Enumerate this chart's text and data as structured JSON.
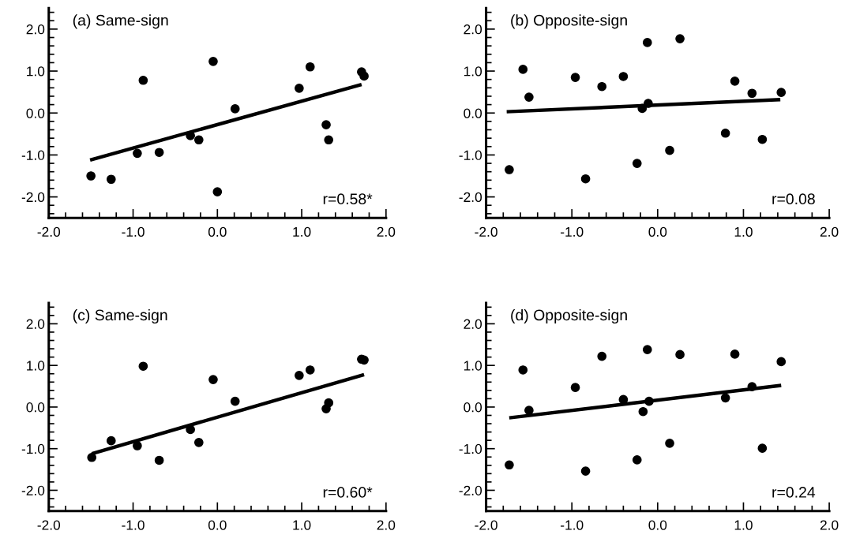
{
  "chart_data": [
    {
      "type": "scatter",
      "title": "(a) Same-sign",
      "annotations": [
        "r=0.58*"
      ],
      "xlim": [
        -2.0,
        2.0
      ],
      "ylim": [
        -2.5,
        2.5
      ],
      "grid": false,
      "xticks": [
        {
          "value": -2,
          "label": "-2.0"
        },
        {
          "value": -1,
          "label": "-1.0"
        },
        {
          "value": 0,
          "label": "0.0"
        },
        {
          "value": 1,
          "label": "1.0"
        },
        {
          "value": 2,
          "label": "2.0"
        }
      ],
      "yticks": [
        {
          "value": -2,
          "label": "-2.0"
        },
        {
          "value": -1,
          "label": "-1.0"
        },
        {
          "value": 0,
          "label": "0.0"
        },
        {
          "value": 1,
          "label": "1.0"
        },
        {
          "value": 2,
          "label": "2.0"
        }
      ],
      "series": [
        {
          "marker": "circle",
          "color": "#000000",
          "x": [
            -1.5,
            -1.26,
            -0.95,
            -0.88,
            -0.69,
            -0.32,
            -0.22,
            -0.05,
            0.0,
            0.21,
            0.97,
            1.1,
            1.29,
            1.32,
            1.71,
            1.74
          ],
          "values": [
            -1.5,
            -1.58,
            -0.96,
            0.78,
            -0.94,
            -0.54,
            -0.64,
            1.23,
            -1.88,
            0.1,
            0.59,
            1.1,
            -0.28,
            -0.64,
            0.98,
            0.88
          ]
        },
        {
          "type": "line",
          "color": "#000000",
          "x": [
            -1.51,
            1.71
          ],
          "values": [
            -1.12,
            0.68
          ]
        }
      ]
    },
    {
      "type": "scatter",
      "title": "(b) Opposite-sign",
      "annotations": [
        "r=0.08"
      ],
      "xlim": [
        -2.0,
        2.0
      ],
      "ylim": [
        -2.5,
        2.5
      ],
      "grid": false,
      "xticks": [
        {
          "value": -2,
          "label": "-2.0"
        },
        {
          "value": -1,
          "label": "-1.0"
        },
        {
          "value": 0,
          "label": "0.0"
        },
        {
          "value": 1,
          "label": "1.0"
        },
        {
          "value": 2,
          "label": "2.0"
        }
      ],
      "yticks": [
        {
          "value": -2,
          "label": "-2.0"
        },
        {
          "value": -1,
          "label": "-1.0"
        },
        {
          "value": 0,
          "label": "0.0"
        },
        {
          "value": 1,
          "label": "1.0"
        },
        {
          "value": 2,
          "label": "2.0"
        }
      ],
      "series": [
        {
          "marker": "circle",
          "color": "#000000",
          "x": [
            -1.73,
            -1.57,
            -1.5,
            -0.96,
            -0.84,
            -0.65,
            -0.4,
            -0.24,
            -0.18,
            -0.12,
            -0.11,
            0.14,
            0.26,
            0.79,
            0.9,
            1.1,
            1.22,
            1.44
          ],
          "values": [
            -1.35,
            1.04,
            0.38,
            0.85,
            -1.57,
            0.63,
            0.87,
            -1.2,
            0.11,
            1.68,
            0.23,
            -0.89,
            1.77,
            -0.48,
            0.76,
            0.47,
            -0.63,
            0.49
          ]
        },
        {
          "type": "line",
          "color": "#000000",
          "x": [
            -1.76,
            1.43
          ],
          "values": [
            0.03,
            0.32
          ]
        }
      ]
    },
    {
      "type": "scatter",
      "title": "(c) Same-sign",
      "annotations": [
        "r=0.60*"
      ],
      "xlim": [
        -2.0,
        2.0
      ],
      "ylim": [
        -2.5,
        2.5
      ],
      "grid": false,
      "xticks": [
        {
          "value": -2,
          "label": "-2.0"
        },
        {
          "value": -1,
          "label": "-1.0"
        },
        {
          "value": 0,
          "label": "0.0"
        },
        {
          "value": 1,
          "label": "1.0"
        },
        {
          "value": 2,
          "label": "2.0"
        }
      ],
      "yticks": [
        {
          "value": -2,
          "label": "-2.0"
        },
        {
          "value": -1,
          "label": "-1.0"
        },
        {
          "value": 0,
          "label": "0.0"
        },
        {
          "value": 1,
          "label": "1.0"
        },
        {
          "value": 2,
          "label": "2.0"
        }
      ],
      "series": [
        {
          "marker": "circle",
          "color": "#000000",
          "x": [
            -1.49,
            -1.26,
            -0.95,
            -0.88,
            -0.69,
            -0.32,
            -0.22,
            -0.05,
            0.21,
            0.97,
            1.1,
            1.29,
            1.32,
            1.71,
            1.74
          ],
          "values": [
            -1.21,
            -0.81,
            -0.93,
            0.98,
            -1.28,
            -0.54,
            -0.85,
            0.66,
            0.14,
            0.76,
            0.89,
            -0.04,
            0.1,
            1.15,
            1.13
          ]
        },
        {
          "type": "line",
          "color": "#000000",
          "x": [
            -1.49,
            1.74
          ],
          "values": [
            -1.12,
            0.78
          ]
        }
      ]
    },
    {
      "type": "scatter",
      "title": "(d) Opposite-sign",
      "annotations": [
        "r=0.24"
      ],
      "xlim": [
        -2.0,
        2.0
      ],
      "ylim": [
        -2.5,
        2.5
      ],
      "grid": false,
      "xticks": [
        {
          "value": -2,
          "label": "-2.0"
        },
        {
          "value": -1,
          "label": "-1.0"
        },
        {
          "value": 0,
          "label": "0.0"
        },
        {
          "value": 1,
          "label": "1.0"
        },
        {
          "value": 2,
          "label": "2.0"
        }
      ],
      "yticks": [
        {
          "value": -2,
          "label": "-2.0"
        },
        {
          "value": -1,
          "label": "-1.0"
        },
        {
          "value": 0,
          "label": "0.0"
        },
        {
          "value": 1,
          "label": "1.0"
        },
        {
          "value": 2,
          "label": "2.0"
        }
      ],
      "series": [
        {
          "marker": "circle",
          "color": "#000000",
          "x": [
            -1.73,
            -1.57,
            -1.5,
            -0.96,
            -0.84,
            -0.65,
            -0.4,
            -0.24,
            -0.17,
            -0.12,
            -0.1,
            0.14,
            0.26,
            0.79,
            0.9,
            1.1,
            1.22,
            1.44
          ],
          "values": [
            -1.39,
            0.89,
            -0.08,
            0.47,
            -1.54,
            1.22,
            0.18,
            -1.27,
            -0.11,
            1.38,
            0.14,
            -0.87,
            1.26,
            0.22,
            1.27,
            0.49,
            -0.99,
            1.09
          ]
        },
        {
          "type": "line",
          "color": "#000000",
          "x": [
            -1.73,
            1.44
          ],
          "values": [
            -0.26,
            0.52
          ]
        }
      ]
    }
  ]
}
